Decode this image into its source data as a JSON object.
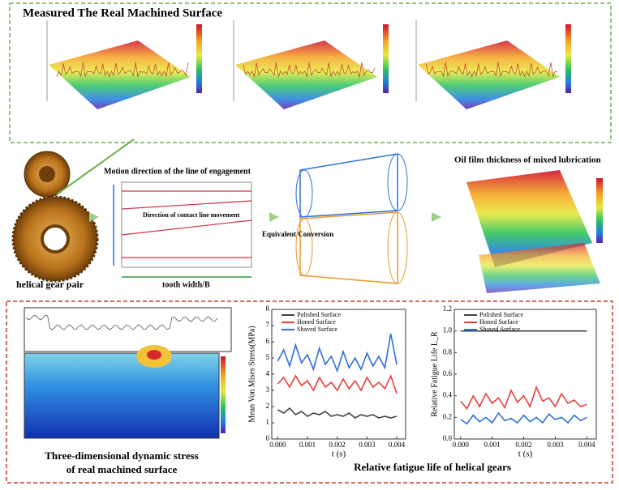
{
  "top_panel": {
    "title": "Measured The Real Machined Surface"
  },
  "middle": {
    "gear_label": "helical gear pair",
    "engagement_title": "Motion direction of the line of engagement",
    "contact_direction": "Direction of contact line movement",
    "tooth_width": "tooth width/B",
    "conversion": "Equivalent Conversion",
    "oil_film_title": "Oil film thickness of mixed lubrication"
  },
  "bottom": {
    "stress_caption": "Three-dimensional dynamic stress of real machined surface",
    "fatigue_caption": "Relative fatigue life of helical gears"
  },
  "charts": [
    {
      "type": "line",
      "ylabel": "Mean Von Mises Stress(MPa)",
      "xlabel": "t (s)",
      "x": [
        0,
        0.0002,
        0.0004,
        0.0006,
        0.0008,
        0.001,
        0.0012,
        0.0014,
        0.0016,
        0.0018,
        0.002,
        0.0022,
        0.0024,
        0.0026,
        0.0028,
        0.003,
        0.0032,
        0.0034,
        0.0036,
        0.0038,
        0.004
      ],
      "xlim": [
        -0.0002,
        0.0043
      ],
      "xticks": [
        {
          "value": 0,
          "label": "0.000"
        },
        {
          "value": 0.001,
          "label": "0.001"
        },
        {
          "value": 0.002,
          "label": "0.002"
        },
        {
          "value": 0.003,
          "label": "0.003"
        },
        {
          "value": 0.004,
          "label": "0.004"
        }
      ],
      "ylim": [
        0,
        8
      ],
      "yticks": [
        0,
        1,
        2,
        3,
        4,
        5,
        6,
        7,
        8
      ],
      "series": [
        {
          "name": "Polished Surface",
          "color": "#444444",
          "values": [
            1.8,
            1.6,
            1.9,
            1.5,
            1.7,
            1.4,
            1.6,
            1.5,
            1.7,
            1.4,
            1.5,
            1.4,
            1.6,
            1.3,
            1.5,
            1.4,
            1.5,
            1.3,
            1.4,
            1.3,
            1.4
          ]
        },
        {
          "name": "Honed Surface",
          "color": "#e8403a",
          "values": [
            3.4,
            3.8,
            3.2,
            3.9,
            3.3,
            3.6,
            3.0,
            3.8,
            3.2,
            3.5,
            3.0,
            3.7,
            3.1,
            3.6,
            3.0,
            3.8,
            3.2,
            3.5,
            3.1,
            3.9,
            2.8
          ]
        },
        {
          "name": "Shaved Surface",
          "color": "#2f6fd6",
          "values": [
            4.8,
            5.5,
            4.5,
            5.8,
            4.7,
            5.2,
            4.3,
            5.6,
            4.6,
            5.1,
            4.2,
            5.4,
            4.4,
            5.0,
            4.3,
            5.3,
            4.5,
            5.1,
            4.4,
            6.5,
            4.6
          ]
        }
      ]
    },
    {
      "type": "line",
      "ylabel": "Relative Fatigue Life L_R",
      "xlabel": "t (s)",
      "x": [
        0,
        0.0002,
        0.0004,
        0.0006,
        0.0008,
        0.001,
        0.0012,
        0.0014,
        0.0016,
        0.0018,
        0.002,
        0.0022,
        0.0024,
        0.0026,
        0.0028,
        0.003,
        0.0032,
        0.0034,
        0.0036,
        0.0038,
        0.004
      ],
      "xlim": [
        -0.0002,
        0.0043
      ],
      "xticks": [
        {
          "value": 0,
          "label": "0.000"
        },
        {
          "value": 0.001,
          "label": "0.001"
        },
        {
          "value": 0.002,
          "label": "0.002"
        },
        {
          "value": 0.003,
          "label": "0.003"
        },
        {
          "value": 0.004,
          "label": "0.004"
        }
      ],
      "ylim": [
        0,
        1.2
      ],
      "yticks": [
        {
          "value": 0,
          "label": "0.0"
        },
        {
          "value": 0.2,
          "label": "0.2"
        },
        {
          "value": 0.4,
          "label": "0.4"
        },
        {
          "value": 0.6,
          "label": "0.6"
        },
        {
          "value": 0.8,
          "label": "0.8"
        },
        {
          "value": 1,
          "label": "1.0"
        },
        {
          "value": 1.2,
          "label": "1.2"
        }
      ],
      "series": [
        {
          "name": "Polished Surface",
          "color": "#444444",
          "values": [
            1,
            1,
            1,
            1,
            1,
            1,
            1,
            1,
            1,
            1,
            1,
            1,
            1,
            1,
            1,
            1,
            1,
            1,
            1,
            1,
            1
          ]
        },
        {
          "name": "Honed Surface",
          "color": "#e8403a",
          "values": [
            0.35,
            0.28,
            0.4,
            0.3,
            0.42,
            0.33,
            0.38,
            0.29,
            0.45,
            0.34,
            0.4,
            0.3,
            0.48,
            0.35,
            0.38,
            0.3,
            0.42,
            0.33,
            0.36,
            0.3,
            0.32
          ]
        },
        {
          "name": "Shaved Surface",
          "color": "#2f6fd6",
          "values": [
            0.18,
            0.14,
            0.22,
            0.16,
            0.2,
            0.15,
            0.24,
            0.17,
            0.19,
            0.15,
            0.22,
            0.16,
            0.2,
            0.15,
            0.23,
            0.18,
            0.2,
            0.15,
            0.22,
            0.17,
            0.2
          ]
        }
      ]
    }
  ]
}
